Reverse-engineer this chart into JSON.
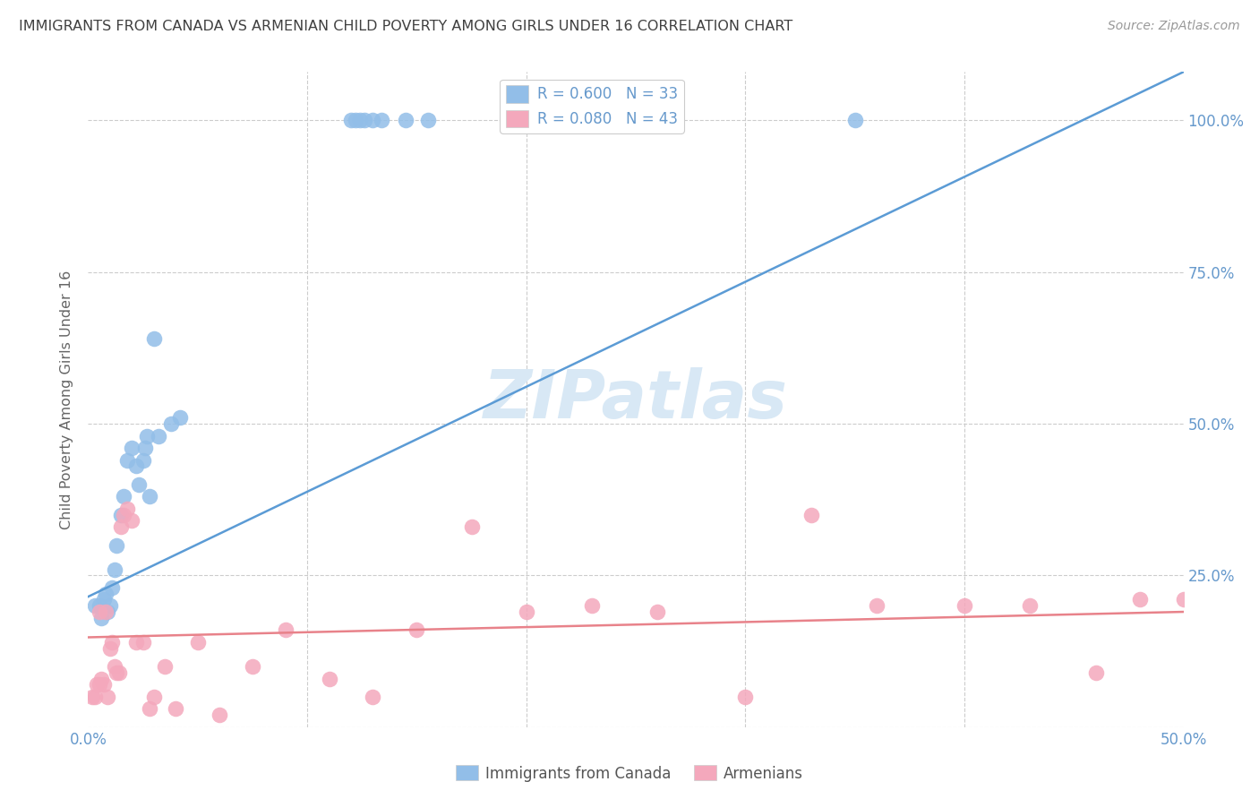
{
  "title": "IMMIGRANTS FROM CANADA VS ARMENIAN CHILD POVERTY AMONG GIRLS UNDER 16 CORRELATION CHART",
  "source": "Source: ZipAtlas.com",
  "ylabel": "Child Poverty Among Girls Under 16",
  "watermark": "ZIPatlas",
  "legend_r1": "R = 0.600",
  "legend_n1": "N = 33",
  "legend_r2": "R = 0.080",
  "legend_n2": "N = 43",
  "legend_label1": "Immigrants from Canada",
  "legend_label2": "Armenians",
  "blue_color": "#92BEE8",
  "pink_color": "#F4A8BC",
  "blue_line_color": "#5B9BD5",
  "pink_line_color": "#E8828A",
  "title_color": "#404040",
  "axis_label_color": "#6699CC",
  "source_color": "#999999",
  "watermark_color": "#D8E8F5",
  "bg_color": "#FFFFFF",
  "grid_color": "#CCCCCC",
  "xlim": [
    0.0,
    0.5
  ],
  "ylim": [
    0.0,
    1.08
  ],
  "canada_line_x": [
    0.0,
    0.5
  ],
  "canada_line_y": [
    0.215,
    1.08
  ],
  "armenian_line_x": [
    0.0,
    0.5
  ],
  "armenian_line_y": [
    0.148,
    0.19
  ],
  "canada_x": [
    0.003,
    0.005,
    0.006,
    0.007,
    0.008,
    0.009,
    0.01,
    0.011,
    0.012,
    0.013,
    0.015,
    0.016,
    0.018,
    0.02,
    0.022,
    0.023,
    0.025,
    0.026,
    0.027,
    0.028,
    0.03,
    0.032,
    0.038,
    0.042,
    0.12,
    0.122,
    0.124,
    0.126,
    0.13,
    0.134,
    0.145,
    0.155,
    0.35
  ],
  "canada_y": [
    0.2,
    0.2,
    0.18,
    0.21,
    0.22,
    0.19,
    0.2,
    0.23,
    0.26,
    0.3,
    0.35,
    0.38,
    0.44,
    0.46,
    0.43,
    0.4,
    0.44,
    0.46,
    0.48,
    0.38,
    0.64,
    0.48,
    0.5,
    0.51,
    1.0,
    1.0,
    1.0,
    1.0,
    1.0,
    1.0,
    1.0,
    1.0,
    1.0
  ],
  "armenian_x": [
    0.002,
    0.003,
    0.004,
    0.005,
    0.005,
    0.006,
    0.007,
    0.008,
    0.009,
    0.01,
    0.011,
    0.012,
    0.013,
    0.014,
    0.015,
    0.016,
    0.018,
    0.02,
    0.022,
    0.025,
    0.028,
    0.03,
    0.035,
    0.04,
    0.05,
    0.06,
    0.075,
    0.09,
    0.11,
    0.13,
    0.15,
    0.175,
    0.2,
    0.23,
    0.26,
    0.3,
    0.33,
    0.36,
    0.4,
    0.43,
    0.46,
    0.48,
    0.5
  ],
  "armenian_y": [
    0.05,
    0.05,
    0.07,
    0.07,
    0.19,
    0.08,
    0.07,
    0.19,
    0.05,
    0.13,
    0.14,
    0.1,
    0.09,
    0.09,
    0.33,
    0.35,
    0.36,
    0.34,
    0.14,
    0.14,
    0.03,
    0.05,
    0.1,
    0.03,
    0.14,
    0.02,
    0.1,
    0.16,
    0.08,
    0.05,
    0.16,
    0.33,
    0.19,
    0.2,
    0.19,
    0.05,
    0.35,
    0.2,
    0.2,
    0.2,
    0.09,
    0.21,
    0.21
  ]
}
